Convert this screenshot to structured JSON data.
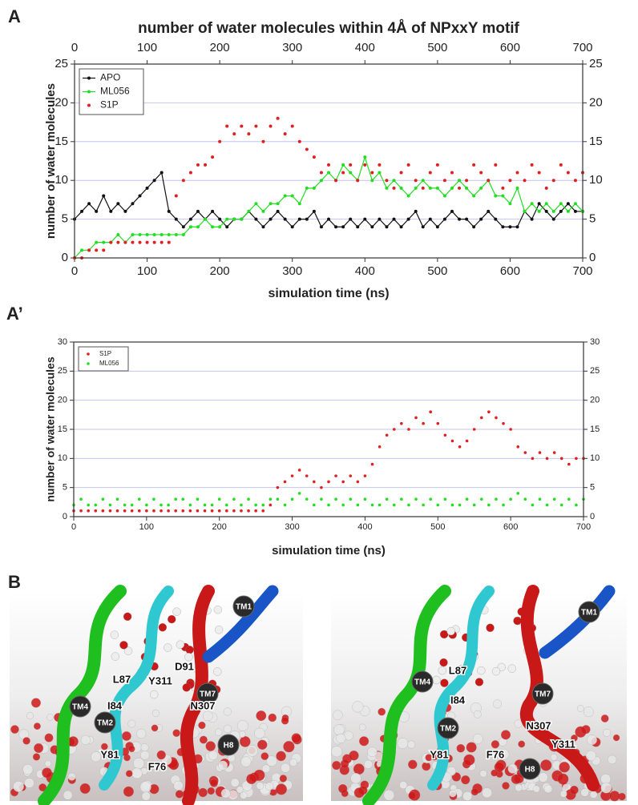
{
  "panel_labels": [
    "A",
    "A’",
    "B"
  ],
  "chart_data": [
    {
      "type": "line",
      "title": "number of water molecules within 4Å of NPxxY motif",
      "x_label": "simulation time (ns)",
      "y_label": "number of water molecules",
      "x": [
        0,
        10,
        20,
        30,
        40,
        50,
        60,
        70,
        80,
        90,
        100,
        110,
        120,
        130,
        140,
        150,
        160,
        170,
        180,
        190,
        200,
        210,
        220,
        230,
        240,
        250,
        260,
        270,
        280,
        290,
        300,
        310,
        320,
        330,
        340,
        350,
        360,
        370,
        380,
        390,
        400,
        410,
        420,
        430,
        440,
        450,
        460,
        470,
        480,
        490,
        500,
        510,
        520,
        530,
        540,
        550,
        560,
        570,
        580,
        590,
        600,
        610,
        620,
        630,
        640,
        650,
        660,
        670,
        680,
        690,
        700
      ],
      "series": [
        {
          "name": "APO",
          "color": "#111111",
          "line": true,
          "values": [
            5,
            6,
            7,
            6,
            8,
            6,
            7,
            6,
            7,
            8,
            9,
            10,
            11,
            6,
            5,
            4,
            5,
            6,
            5,
            6,
            5,
            4,
            5,
            5,
            6,
            5,
            4,
            5,
            6,
            5,
            4,
            5,
            5,
            6,
            4,
            5,
            4,
            4,
            5,
            4,
            5,
            4,
            5,
            4,
            5,
            4,
            5,
            6,
            4,
            5,
            4,
            5,
            6,
            5,
            5,
            4,
            5,
            6,
            5,
            4,
            4,
            4,
            6,
            5,
            7,
            6,
            5,
            6,
            7,
            6,
            6
          ]
        },
        {
          "name": "ML056",
          "color": "#22dd22",
          "line": true,
          "values": [
            0,
            1,
            1,
            2,
            2,
            2,
            3,
            2,
            3,
            3,
            3,
            3,
            3,
            3,
            3,
            3,
            4,
            4,
            5,
            4,
            4,
            5,
            5,
            5,
            6,
            7,
            6,
            7,
            7,
            8,
            8,
            7,
            9,
            9,
            10,
            11,
            10,
            12,
            11,
            10,
            13,
            10,
            11,
            9,
            10,
            9,
            8,
            9,
            10,
            9,
            9,
            8,
            9,
            10,
            9,
            8,
            9,
            10,
            8,
            8,
            7,
            9,
            6,
            7,
            6,
            7,
            6,
            7,
            6,
            7,
            6
          ]
        },
        {
          "name": "S1P",
          "color": "#e02020",
          "line": false,
          "values": [
            0,
            0,
            1,
            1,
            1,
            2,
            2,
            2,
            2,
            2,
            2,
            2,
            2,
            2,
            8,
            10,
            11,
            12,
            12,
            13,
            15,
            17,
            16,
            17,
            16,
            17,
            15,
            17,
            18,
            16,
            17,
            15,
            14,
            13,
            11,
            12,
            10,
            11,
            12,
            10,
            12,
            11,
            12,
            10,
            9,
            11,
            12,
            10,
            9,
            11,
            12,
            10,
            11,
            9,
            10,
            12,
            11,
            10,
            12,
            9,
            10,
            11,
            10,
            12,
            11,
            9,
            10,
            12,
            11,
            10,
            11
          ]
        }
      ],
      "xlim": [
        0,
        700
      ],
      "xticks": [
        0,
        100,
        200,
        300,
        400,
        500,
        600,
        700
      ],
      "ylim": [
        0,
        25
      ],
      "yticks": [
        0,
        5,
        10,
        15,
        20,
        25
      ],
      "grid": true,
      "legend": "upper left"
    },
    {
      "type": "scatter",
      "x_label": "simulation time (ns)",
      "y_label": "number of water molecules",
      "x": [
        0,
        10,
        20,
        30,
        40,
        50,
        60,
        70,
        80,
        90,
        100,
        110,
        120,
        130,
        140,
        150,
        160,
        170,
        180,
        190,
        200,
        210,
        220,
        230,
        240,
        250,
        260,
        270,
        280,
        290,
        300,
        310,
        320,
        330,
        340,
        350,
        360,
        370,
        380,
        390,
        400,
        410,
        420,
        430,
        440,
        450,
        460,
        470,
        480,
        490,
        500,
        510,
        520,
        530,
        540,
        550,
        560,
        570,
        580,
        590,
        600,
        610,
        620,
        630,
        640,
        650,
        660,
        670,
        680,
        690,
        700
      ],
      "series": [
        {
          "name": "S1P",
          "color": "#e02020",
          "values": [
            1,
            1,
            1,
            1,
            1,
            1,
            1,
            1,
            1,
            1,
            1,
            1,
            1,
            1,
            1,
            1,
            1,
            1,
            1,
            1,
            1,
            1,
            1,
            1,
            1,
            1,
            1,
            2,
            5,
            6,
            7,
            8,
            7,
            6,
            5,
            6,
            7,
            6,
            7,
            6,
            7,
            9,
            12,
            14,
            15,
            16,
            15,
            17,
            16,
            18,
            16,
            14,
            13,
            12,
            13,
            15,
            17,
            18,
            17,
            16,
            15,
            12,
            11,
            10,
            11,
            10,
            11,
            10,
            9,
            10,
            10
          ]
        },
        {
          "name": "ML056",
          "color": "#22dd22",
          "values": [
            2,
            3,
            2,
            2,
            3,
            2,
            3,
            2,
            2,
            3,
            2,
            3,
            2,
            2,
            3,
            3,
            2,
            3,
            2,
            2,
            3,
            2,
            3,
            2,
            3,
            2,
            2,
            3,
            3,
            2,
            3,
            4,
            3,
            2,
            3,
            2,
            3,
            2,
            3,
            2,
            3,
            2,
            2,
            3,
            2,
            3,
            2,
            3,
            2,
            3,
            2,
            3,
            2,
            2,
            3,
            2,
            3,
            2,
            3,
            2,
            3,
            4,
            3,
            2,
            3,
            2,
            3,
            2,
            3,
            2,
            3
          ]
        }
      ],
      "xlim": [
        0,
        700
      ],
      "xticks": [
        0,
        100,
        200,
        300,
        400,
        500,
        600,
        700
      ],
      "ylim": [
        0,
        30
      ],
      "yticks": [
        0,
        5,
        10,
        15,
        20,
        25,
        30
      ],
      "grid": true,
      "legend": "upper left"
    }
  ],
  "structure_labels": [
    [
      "TM1",
      "D91",
      "TM7",
      "L87",
      "Y311",
      "N307",
      "TM4",
      "I84",
      "TM2",
      "H8",
      "Y81",
      "F76"
    ],
    [
      "TM1",
      "L87",
      "TM7",
      "TM4",
      "I84",
      "N307",
      "TM2",
      "Y311",
      "Y81",
      "F76",
      "H8"
    ]
  ]
}
